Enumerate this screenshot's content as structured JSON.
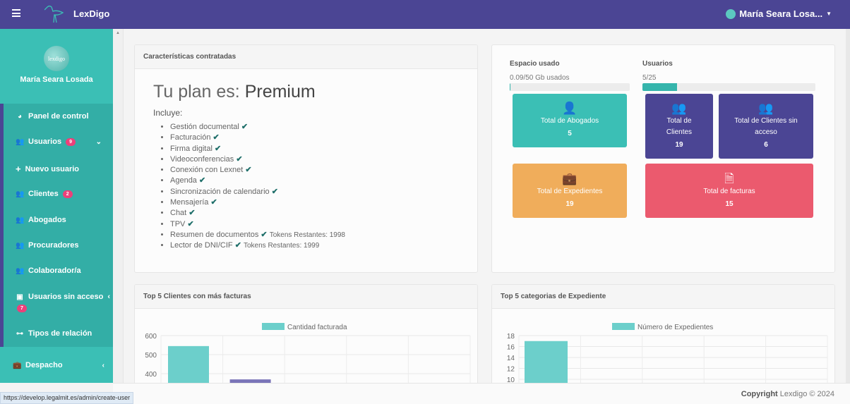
{
  "header": {
    "brand": "LexDigo",
    "user": "María Seara Losa..."
  },
  "sidebar": {
    "avatar_text": "lexdigo",
    "user_name": "María Seara Losada",
    "items": [
      {
        "label": "Panel de control",
        "icon": "dashboard-icon"
      },
      {
        "label": "Usuarios",
        "icon": "users-icon",
        "badge": "9"
      },
      {
        "label": "Nuevo usuario",
        "icon": "plus-icon"
      },
      {
        "label": "Clientes",
        "icon": "users-icon",
        "badge": "2"
      },
      {
        "label": "Abogados",
        "icon": "users-icon"
      },
      {
        "label": "Procuradores",
        "icon": "users-icon"
      },
      {
        "label": "Colaborador/a",
        "icon": "users-icon"
      },
      {
        "label": "Usuarios sin acceso",
        "icon": "contact-icon",
        "badge": "7"
      },
      {
        "label": "Tipos de relación",
        "icon": "relation-icon"
      },
      {
        "label": "Despacho",
        "icon": "briefcase-icon"
      }
    ]
  },
  "plan": {
    "title": "Características contratadas",
    "prefix": "Tu plan es: ",
    "name": "Premium",
    "includes": "Incluye:",
    "features": [
      {
        "name": "Gestión documental"
      },
      {
        "name": "Facturación"
      },
      {
        "name": "Firma digital"
      },
      {
        "name": "Videoconferencias"
      },
      {
        "name": "Conexión con Lexnet"
      },
      {
        "name": "Agenda"
      },
      {
        "name": "Sincronización de calendario"
      },
      {
        "name": "Mensajería"
      },
      {
        "name": "Chat"
      },
      {
        "name": "TPV"
      },
      {
        "name": "Resumen de documentos",
        "tokens": "Tokens Restantes: 1998"
      },
      {
        "name": "Lector de DNI/CIF",
        "tokens": "Tokens Restantes: 1999"
      }
    ]
  },
  "usage": {
    "space_label": "Espacio usado",
    "space_text": "0.09/50 Gb usados",
    "space_fraction": 0.0018,
    "users_label": "Usuarios",
    "users_text": "5/25",
    "users_fraction": 0.2
  },
  "stats": [
    {
      "label": "Total de Abogados",
      "value": "5",
      "color": "#3bbfb5"
    },
    {
      "label": "Total de Clientes",
      "value": "19",
      "color": "#4b4594"
    },
    {
      "label": "Total de Clientes sin acceso",
      "value": "6",
      "color": "#4b4594"
    },
    {
      "label": "Total de Expedientes",
      "value": "19",
      "color": "#f0ad5b"
    },
    {
      "label": "Total de facturas",
      "value": "15",
      "color": "#eb5a6e"
    }
  ],
  "chart_data": [
    {
      "type": "bar",
      "title": "Top 5 Clientes con más facturas",
      "legend": "Cantidad facturada",
      "yticks": [
        "600",
        "500",
        "400"
      ],
      "ylim": [
        300,
        600
      ],
      "values": [
        545,
        370
      ],
      "colors": [
        "#6ccfcb",
        "#7a75b8"
      ]
    },
    {
      "type": "bar",
      "title": "Top 5 categorias de Expediente",
      "legend": "Número de Expedientes",
      "yticks": [
        "18",
        "16",
        "14",
        "12",
        "10"
      ],
      "ylim": [
        8,
        18
      ],
      "values": [
        17
      ],
      "colors": [
        "#6ccfcb"
      ]
    }
  ],
  "footer": {
    "copyright": "Copyright",
    "rest": " Lexdigo © 2024"
  },
  "status_url": "https://develop.legalmit.es/admin/create-user"
}
